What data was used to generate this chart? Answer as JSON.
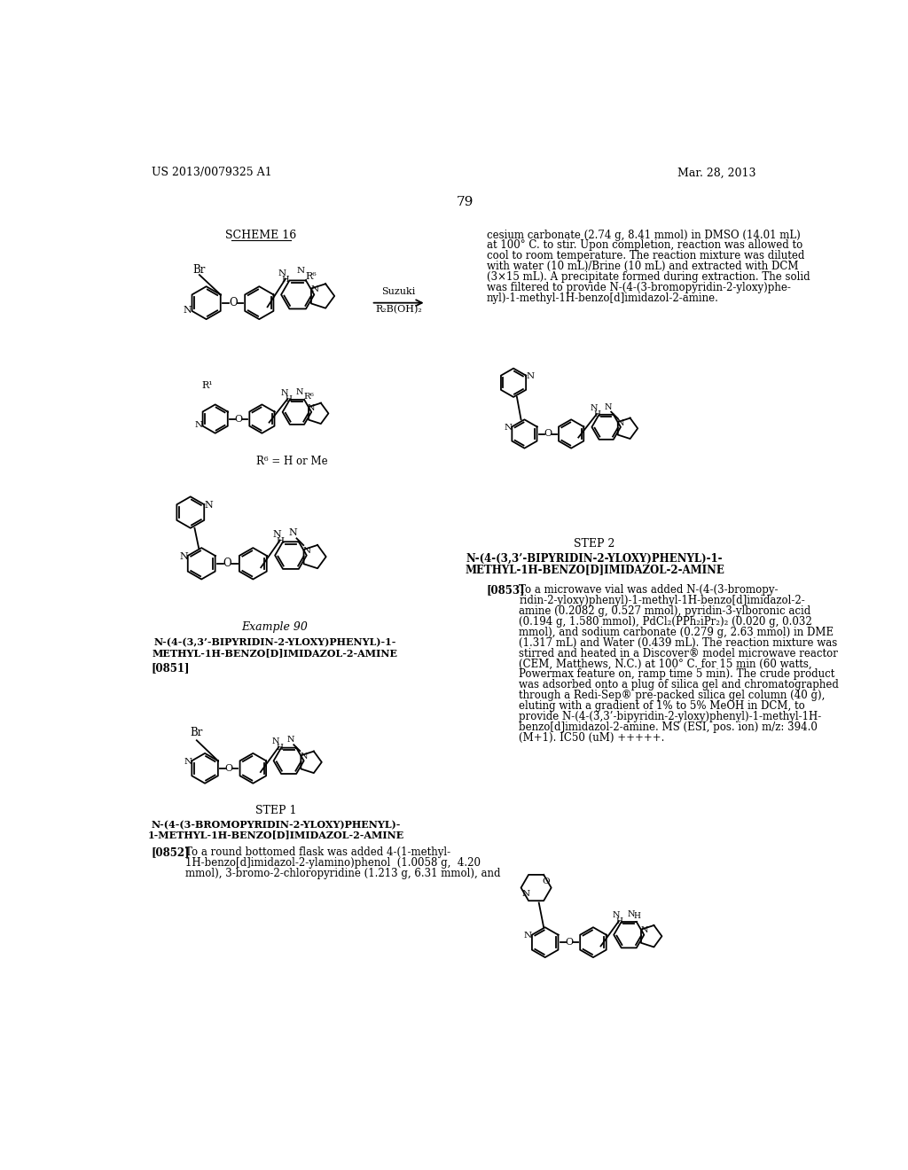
{
  "page_number": "79",
  "header_left": "US 2013/0079325 A1",
  "header_right": "Mar. 28, 2013",
  "scheme_label": "SCHEME 16",
  "scheme_arrow_label_top": "Suzuki",
  "scheme_arrow_label_bottom": "R₂B(OH)₂",
  "r6_label": "R⁶ = H or Me",
  "example_label": "Example 90",
  "example_name_line1": "N-(4-(3,3’-BIPYRIDIN-2-YLOXY)PHENYL)-1-",
  "example_name_line2": "METHYL-1H-BENZO[D]IMIDAZOL-2-AMINE",
  "step1_label": "STEP 1",
  "step1_name_line1": "N-(4-(3-BROMOPYRIDIN-2-YLOXY)PHENYL)-",
  "step1_name_line2": "1-METHYL-1H-BENZO[D]IMIDAZOL-2-AMINE",
  "para_0851": "[0851]",
  "para_0852_label": "[0852]",
  "step2_label": "STEP 2",
  "step2_name_line1": "N-(4-(3,3’-BIPYRIDIN-2-YLOXY)PHENYL)-1-",
  "step2_name_line2": "METHYL-1H-BENZO[D]IMIDAZOL-2-AMINE",
  "para_0853_label": "[0853]",
  "background_color": "#ffffff",
  "text_color": "#000000",
  "right_col_lines": [
    "cesium carbonate (2.74 g, 8.41 mmol) in DMSO (14.01 mL)",
    "at 100° C. to stir. Upon completion, reaction was allowed to",
    "cool to room temperature. The reaction mixture was diluted",
    "with water (10 mL)/Brine (10 mL) and extracted with DCM",
    "(3×15 mL). A precipitate formed during extraction. The solid",
    "was filtered to provide N-(4-(3-bromopyridin-2-yloxy)phe-",
    "nyl)-1-methyl-1H-benzo[d]imidazol-2-amine."
  ],
  "para0852_lines": [
    "To a round bottomed flask was added 4-(1-methyl-",
    "1H-benzo[d]imidazol-2-ylamino)phenol  (1.0058 g,  4.20",
    "mmol), 3-bromo-2-chloropyridine (1.213 g, 6.31 mmol), and"
  ],
  "para0853_lines": [
    "To a microwave vial was added N-(4-(3-bromopy-",
    "ridin-2-yloxy)phenyl)-1-methyl-1H-benzo[d]imidazol-2-",
    "amine (0.2082 g, 0.527 mmol), pyridin-3-ylboronic acid",
    "(0.194 g, 1.580 mmol), PdCl₂(PPh₂iPr₂)₂ (0.020 g, 0.032",
    "mmol), and sodium carbonate (0.279 g, 2.63 mmol) in DME",
    "(1.317 mL) and Water (0.439 mL). The reaction mixture was",
    "stirred and heated in a Discover® model microwave reactor",
    "(CEM, Matthews, N.C.) at 100° C. for 15 min (60 watts,",
    "Powermax feature on, ramp time 5 min). The crude product",
    "was adsorbed onto a plug of silica gel and chromatographed",
    "through a Redi-Sep® pre-packed silica gel column (40 g),",
    "eluting with a gradient of 1% to 5% MeOH in DCM, to",
    "provide N-(4-(3,3’-bipyridin-2-yloxy)phenyl)-1-methyl-1H-",
    "benzo[d]imidazol-2-amine. MS (ESI, pos. ion) m/z: 394.0",
    "(M+1). IC50 (uM) +++++."
  ]
}
